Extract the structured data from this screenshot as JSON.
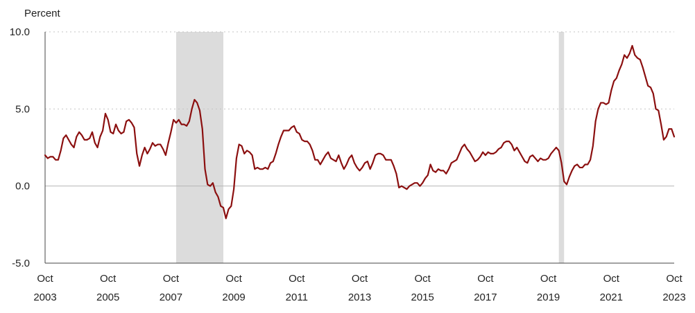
{
  "chart_data": {
    "type": "line",
    "title": "",
    "ylabel": "Percent",
    "xlabel": "",
    "ylim": [
      -5.0,
      10.0
    ],
    "xlim": [
      "2003-10",
      "2023-10"
    ],
    "yticks": [
      {
        "value": -5.0,
        "label": "-5.0"
      },
      {
        "value": 0.0,
        "label": "0.0"
      },
      {
        "value": 5.0,
        "label": "5.0"
      },
      {
        "value": 10.0,
        "label": "10.0"
      }
    ],
    "xticks": [
      {
        "date": "2003-10",
        "month": "Oct",
        "year": "2003"
      },
      {
        "date": "2005-10",
        "month": "Oct",
        "year": "2005"
      },
      {
        "date": "2007-10",
        "month": "Oct",
        "year": "2007"
      },
      {
        "date": "2009-10",
        "month": "Oct",
        "year": "2009"
      },
      {
        "date": "2011-10",
        "month": "Oct",
        "year": "2011"
      },
      {
        "date": "2013-10",
        "month": "Oct",
        "year": "2013"
      },
      {
        "date": "2015-10",
        "month": "Oct",
        "year": "2015"
      },
      {
        "date": "2017-10",
        "month": "Oct",
        "year": "2017"
      },
      {
        "date": "2019-10",
        "month": "Oct",
        "year": "2019"
      },
      {
        "date": "2021-10",
        "month": "Oct",
        "year": "2021"
      },
      {
        "date": "2023-10",
        "month": "Oct",
        "year": "2023"
      }
    ],
    "grid": {
      "horizontal": true,
      "style": "dotted"
    },
    "recessions": [
      {
        "start": "2007-12",
        "end": "2009-06"
      },
      {
        "start": "2020-02",
        "end": "2020-04"
      }
    ],
    "series": [
      {
        "color": "#8b0f0f",
        "points": [
          [
            "2003-10",
            2.0
          ],
          [
            "2003-11",
            1.8
          ],
          [
            "2003-12",
            1.9
          ],
          [
            "2004-01",
            1.9
          ],
          [
            "2004-02",
            1.7
          ],
          [
            "2004-03",
            1.7
          ],
          [
            "2004-04",
            2.3
          ],
          [
            "2004-05",
            3.1
          ],
          [
            "2004-06",
            3.3
          ],
          [
            "2004-07",
            3.0
          ],
          [
            "2004-08",
            2.7
          ],
          [
            "2004-09",
            2.5
          ],
          [
            "2004-10",
            3.2
          ],
          [
            "2004-11",
            3.5
          ],
          [
            "2004-12",
            3.3
          ],
          [
            "2005-01",
            3.0
          ],
          [
            "2005-02",
            3.0
          ],
          [
            "2005-03",
            3.1
          ],
          [
            "2005-04",
            3.5
          ],
          [
            "2005-05",
            2.8
          ],
          [
            "2005-06",
            2.5
          ],
          [
            "2005-07",
            3.2
          ],
          [
            "2005-08",
            3.6
          ],
          [
            "2005-09",
            4.7
          ],
          [
            "2005-10",
            4.3
          ],
          [
            "2005-11",
            3.5
          ],
          [
            "2005-12",
            3.4
          ],
          [
            "2006-01",
            4.0
          ],
          [
            "2006-02",
            3.6
          ],
          [
            "2006-03",
            3.4
          ],
          [
            "2006-04",
            3.5
          ],
          [
            "2006-05",
            4.2
          ],
          [
            "2006-06",
            4.3
          ],
          [
            "2006-07",
            4.1
          ],
          [
            "2006-08",
            3.8
          ],
          [
            "2006-09",
            2.1
          ],
          [
            "2006-10",
            1.3
          ],
          [
            "2006-11",
            2.0
          ],
          [
            "2006-12",
            2.5
          ],
          [
            "2007-01",
            2.1
          ],
          [
            "2007-02",
            2.4
          ],
          [
            "2007-03",
            2.8
          ],
          [
            "2007-04",
            2.6
          ],
          [
            "2007-05",
            2.7
          ],
          [
            "2007-06",
            2.7
          ],
          [
            "2007-07",
            2.4
          ],
          [
            "2007-08",
            2.0
          ],
          [
            "2007-09",
            2.8
          ],
          [
            "2007-10",
            3.5
          ],
          [
            "2007-11",
            4.3
          ],
          [
            "2007-12",
            4.1
          ],
          [
            "2008-01",
            4.3
          ],
          [
            "2008-02",
            4.0
          ],
          [
            "2008-03",
            4.0
          ],
          [
            "2008-04",
            3.9
          ],
          [
            "2008-05",
            4.2
          ],
          [
            "2008-06",
            5.0
          ],
          [
            "2008-07",
            5.6
          ],
          [
            "2008-08",
            5.4
          ],
          [
            "2008-09",
            4.9
          ],
          [
            "2008-10",
            3.7
          ],
          [
            "2008-11",
            1.1
          ],
          [
            "2008-12",
            0.1
          ],
          [
            "2009-01",
            0.0
          ],
          [
            "2009-02",
            0.2
          ],
          [
            "2009-03",
            -0.4
          ],
          [
            "2009-04",
            -0.7
          ],
          [
            "2009-05",
            -1.3
          ],
          [
            "2009-06",
            -1.4
          ],
          [
            "2009-07",
            -2.1
          ],
          [
            "2009-08",
            -1.5
          ],
          [
            "2009-09",
            -1.3
          ],
          [
            "2009-10",
            -0.2
          ],
          [
            "2009-11",
            1.8
          ],
          [
            "2009-12",
            2.7
          ],
          [
            "2010-01",
            2.6
          ],
          [
            "2010-02",
            2.1
          ],
          [
            "2010-03",
            2.3
          ],
          [
            "2010-04",
            2.2
          ],
          [
            "2010-05",
            2.0
          ],
          [
            "2010-06",
            1.1
          ],
          [
            "2010-07",
            1.2
          ],
          [
            "2010-08",
            1.1
          ],
          [
            "2010-09",
            1.1
          ],
          [
            "2010-10",
            1.2
          ],
          [
            "2010-11",
            1.1
          ],
          [
            "2010-12",
            1.5
          ],
          [
            "2011-01",
            1.6
          ],
          [
            "2011-02",
            2.1
          ],
          [
            "2011-03",
            2.7
          ],
          [
            "2011-04",
            3.2
          ],
          [
            "2011-05",
            3.6
          ],
          [
            "2011-06",
            3.6
          ],
          [
            "2011-07",
            3.6
          ],
          [
            "2011-08",
            3.8
          ],
          [
            "2011-09",
            3.9
          ],
          [
            "2011-10",
            3.5
          ],
          [
            "2011-11",
            3.4
          ],
          [
            "2011-12",
            3.0
          ],
          [
            "2012-01",
            2.9
          ],
          [
            "2012-02",
            2.9
          ],
          [
            "2012-03",
            2.7
          ],
          [
            "2012-04",
            2.3
          ],
          [
            "2012-05",
            1.7
          ],
          [
            "2012-06",
            1.7
          ],
          [
            "2012-07",
            1.4
          ],
          [
            "2012-08",
            1.7
          ],
          [
            "2012-09",
            2.0
          ],
          [
            "2012-10",
            2.2
          ],
          [
            "2012-11",
            1.8
          ],
          [
            "2012-12",
            1.7
          ],
          [
            "2013-01",
            1.6
          ],
          [
            "2013-02",
            2.0
          ],
          [
            "2013-03",
            1.5
          ],
          [
            "2013-04",
            1.1
          ],
          [
            "2013-05",
            1.4
          ],
          [
            "2013-06",
            1.8
          ],
          [
            "2013-07",
            2.0
          ],
          [
            "2013-08",
            1.5
          ],
          [
            "2013-09",
            1.2
          ],
          [
            "2013-10",
            1.0
          ],
          [
            "2013-11",
            1.2
          ],
          [
            "2013-12",
            1.5
          ],
          [
            "2014-01",
            1.6
          ],
          [
            "2014-02",
            1.1
          ],
          [
            "2014-03",
            1.5
          ],
          [
            "2014-04",
            2.0
          ],
          [
            "2014-05",
            2.1
          ],
          [
            "2014-06",
            2.1
          ],
          [
            "2014-07",
            2.0
          ],
          [
            "2014-08",
            1.7
          ],
          [
            "2014-09",
            1.7
          ],
          [
            "2014-10",
            1.7
          ],
          [
            "2014-11",
            1.3
          ],
          [
            "2014-12",
            0.8
          ],
          [
            "2015-01",
            -0.1
          ],
          [
            "2015-02",
            0.0
          ],
          [
            "2015-03",
            -0.1
          ],
          [
            "2015-04",
            -0.2
          ],
          [
            "2015-05",
            0.0
          ],
          [
            "2015-06",
            0.1
          ],
          [
            "2015-07",
            0.2
          ],
          [
            "2015-08",
            0.2
          ],
          [
            "2015-09",
            0.0
          ],
          [
            "2015-10",
            0.2
          ],
          [
            "2015-11",
            0.5
          ],
          [
            "2015-12",
            0.7
          ],
          [
            "2016-01",
            1.4
          ],
          [
            "2016-02",
            1.0
          ],
          [
            "2016-03",
            0.9
          ],
          [
            "2016-04",
            1.1
          ],
          [
            "2016-05",
            1.0
          ],
          [
            "2016-06",
            1.0
          ],
          [
            "2016-07",
            0.8
          ],
          [
            "2016-08",
            1.1
          ],
          [
            "2016-09",
            1.5
          ],
          [
            "2016-10",
            1.6
          ],
          [
            "2016-11",
            1.7
          ],
          [
            "2016-12",
            2.1
          ],
          [
            "2017-01",
            2.5
          ],
          [
            "2017-02",
            2.7
          ],
          [
            "2017-03",
            2.4
          ],
          [
            "2017-04",
            2.2
          ],
          [
            "2017-05",
            1.9
          ],
          [
            "2017-06",
            1.6
          ],
          [
            "2017-07",
            1.7
          ],
          [
            "2017-08",
            1.9
          ],
          [
            "2017-09",
            2.2
          ],
          [
            "2017-10",
            2.0
          ],
          [
            "2017-11",
            2.2
          ],
          [
            "2017-12",
            2.1
          ],
          [
            "2018-01",
            2.1
          ],
          [
            "2018-02",
            2.2
          ],
          [
            "2018-03",
            2.4
          ],
          [
            "2018-04",
            2.5
          ],
          [
            "2018-05",
            2.8
          ],
          [
            "2018-06",
            2.9
          ],
          [
            "2018-07",
            2.9
          ],
          [
            "2018-08",
            2.7
          ],
          [
            "2018-09",
            2.3
          ],
          [
            "2018-10",
            2.5
          ],
          [
            "2018-11",
            2.2
          ],
          [
            "2018-12",
            1.9
          ],
          [
            "2019-01",
            1.6
          ],
          [
            "2019-02",
            1.5
          ],
          [
            "2019-03",
            1.9
          ],
          [
            "2019-04",
            2.0
          ],
          [
            "2019-05",
            1.8
          ],
          [
            "2019-06",
            1.6
          ],
          [
            "2019-07",
            1.8
          ],
          [
            "2019-08",
            1.7
          ],
          [
            "2019-09",
            1.7
          ],
          [
            "2019-10",
            1.8
          ],
          [
            "2019-11",
            2.1
          ],
          [
            "2019-12",
            2.3
          ],
          [
            "2020-01",
            2.5
          ],
          [
            "2020-02",
            2.3
          ],
          [
            "2020-03",
            1.5
          ],
          [
            "2020-04",
            0.3
          ],
          [
            "2020-05",
            0.1
          ],
          [
            "2020-06",
            0.6
          ],
          [
            "2020-07",
            1.0
          ],
          [
            "2020-08",
            1.3
          ],
          [
            "2020-09",
            1.4
          ],
          [
            "2020-10",
            1.2
          ],
          [
            "2020-11",
            1.2
          ],
          [
            "2020-12",
            1.4
          ],
          [
            "2021-01",
            1.4
          ],
          [
            "2021-02",
            1.7
          ],
          [
            "2021-03",
            2.6
          ],
          [
            "2021-04",
            4.2
          ],
          [
            "2021-05",
            5.0
          ],
          [
            "2021-06",
            5.4
          ],
          [
            "2021-07",
            5.4
          ],
          [
            "2021-08",
            5.3
          ],
          [
            "2021-09",
            5.4
          ],
          [
            "2021-10",
            6.2
          ],
          [
            "2021-11",
            6.8
          ],
          [
            "2021-12",
            7.0
          ],
          [
            "2022-01",
            7.5
          ],
          [
            "2022-02",
            7.9
          ],
          [
            "2022-03",
            8.5
          ],
          [
            "2022-04",
            8.3
          ],
          [
            "2022-05",
            8.6
          ],
          [
            "2022-06",
            9.1
          ],
          [
            "2022-07",
            8.5
          ],
          [
            "2022-08",
            8.3
          ],
          [
            "2022-09",
            8.2
          ],
          [
            "2022-10",
            7.7
          ],
          [
            "2022-11",
            7.1
          ],
          [
            "2022-12",
            6.5
          ],
          [
            "2023-01",
            6.4
          ],
          [
            "2023-02",
            6.0
          ],
          [
            "2023-03",
            5.0
          ],
          [
            "2023-04",
            4.9
          ],
          [
            "2023-05",
            4.0
          ],
          [
            "2023-06",
            3.0
          ],
          [
            "2023-07",
            3.2
          ],
          [
            "2023-08",
            3.7
          ],
          [
            "2023-09",
            3.7
          ],
          [
            "2023-10",
            3.2
          ]
        ]
      }
    ]
  }
}
